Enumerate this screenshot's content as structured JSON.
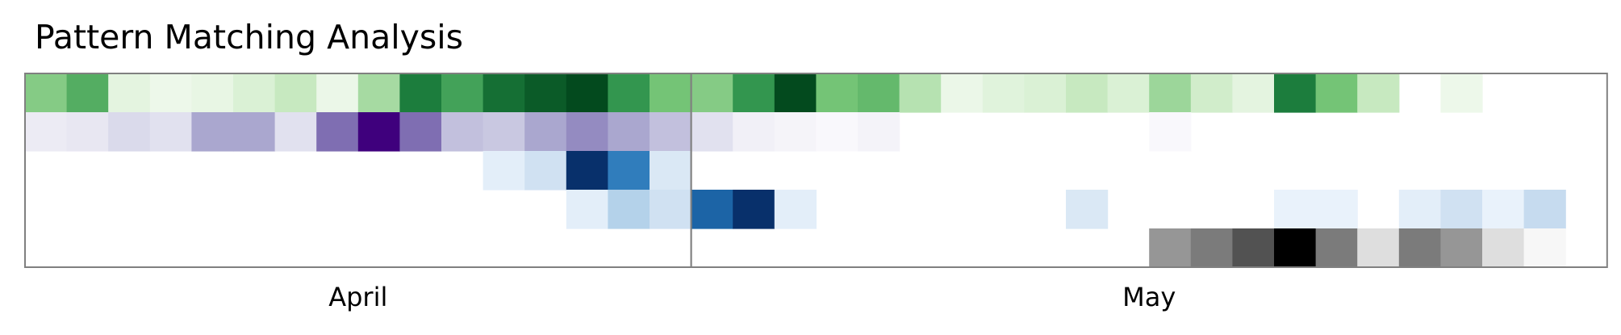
{
  "chart_data": {
    "type": "heatmap",
    "title": "Pattern Matching Analysis",
    "xlabel": "",
    "ylabel": "",
    "grid": false,
    "legend": "none",
    "months": [
      {
        "label": "April",
        "columns": 16
      },
      {
        "label": "May",
        "columns": 22
      }
    ],
    "rows": [
      {
        "colormap": "greens",
        "color": "#00441b",
        "values": [
          0.45,
          0.6,
          0.1,
          0.05,
          0.08,
          0.15,
          0.25,
          0.06,
          0.35,
          0.8,
          0.65,
          0.85,
          0.92,
          0.98,
          0.7,
          0.5,
          0.45,
          0.7,
          0.98,
          0.5,
          0.55,
          0.3,
          0.06,
          0.12,
          0.15,
          0.25,
          0.15,
          0.38,
          0.2,
          0.1,
          0.8,
          0.5,
          0.25,
          0,
          0.05,
          0,
          0,
          0
        ]
      },
      {
        "colormap": "purples",
        "color": "#3f007d",
        "values": [
          0.12,
          0.15,
          0.25,
          0.2,
          0.45,
          0.45,
          0.2,
          0.65,
          1.0,
          0.65,
          0.35,
          0.32,
          0.45,
          0.55,
          0.45,
          0.35,
          0.2,
          0.08,
          0.05,
          0.02,
          0.06,
          0,
          0,
          0,
          0,
          0,
          0,
          0.02,
          0,
          0,
          0,
          0,
          0,
          0,
          0,
          0,
          0,
          0
        ]
      },
      {
        "colormap": "blues",
        "color": "#08306b",
        "values": [
          0,
          0,
          0,
          0,
          0,
          0,
          0,
          0,
          0,
          0,
          0,
          0.1,
          0.2,
          1.0,
          0.7,
          0.15,
          0,
          0,
          0,
          0,
          0,
          0,
          0,
          0,
          0,
          0,
          0,
          0,
          0,
          0,
          0,
          0,
          0,
          0,
          0,
          0,
          0,
          0
        ]
      },
      {
        "colormap": "blues",
        "color": "#08306b",
        "values": [
          0,
          0,
          0,
          0,
          0,
          0,
          0,
          0,
          0,
          0,
          0,
          0,
          0,
          0.1,
          0.3,
          0.2,
          0.8,
          1.0,
          0.1,
          0,
          0,
          0,
          0,
          0,
          0,
          0.15,
          0,
          0,
          0,
          0,
          0.07,
          0.07,
          0,
          0.1,
          0.2,
          0.07,
          0.25,
          0
        ]
      },
      {
        "colormap": "greys",
        "color": "#000000",
        "values": [
          0,
          0,
          0,
          0,
          0,
          0,
          0,
          0,
          0,
          0,
          0,
          0,
          0,
          0,
          0,
          0,
          0,
          0,
          0,
          0,
          0,
          0,
          0,
          0,
          0,
          0,
          0,
          0.5,
          0.6,
          0.75,
          1.0,
          0.6,
          0.22,
          0.6,
          0.5,
          0.22,
          0.05,
          0
        ]
      }
    ]
  }
}
